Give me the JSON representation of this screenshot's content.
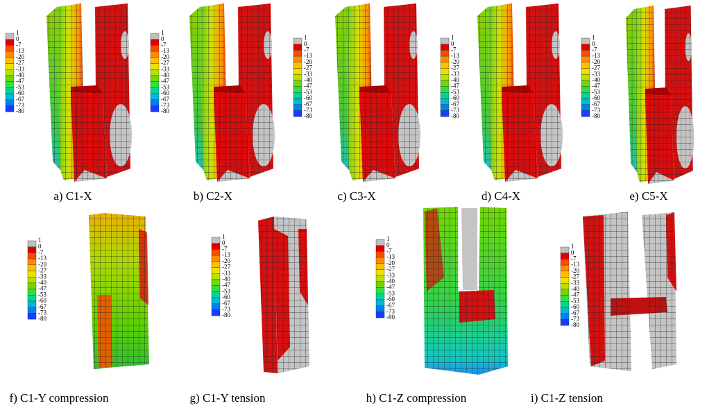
{
  "legend": {
    "labels": [
      "1",
      "0",
      "-7",
      "-13",
      "-20",
      "-27",
      "-33",
      "-40",
      "-47",
      "-53",
      "-60",
      "-67",
      "-73",
      "-80"
    ],
    "colors": [
      "#c0c0c0",
      "#e00000",
      "#ff4a00",
      "#ff8c00",
      "#ffbf00",
      "#f0e000",
      "#b8e000",
      "#70d800",
      "#30e040",
      "#00d890",
      "#00b8d8",
      "#0080f0",
      "#1a3cff"
    ]
  },
  "panels": [
    {
      "caption": "a) C1-X"
    },
    {
      "caption": "b) C2-X"
    },
    {
      "caption": "c) C3-X"
    },
    {
      "caption": "d) C4-X"
    },
    {
      "caption": "e) C5-X"
    },
    {
      "caption": "f) C1-Y compression"
    },
    {
      "caption": "g) C1-Y tension"
    },
    {
      "caption": "h) C1-Z compression"
    },
    {
      "caption": "i) C1-Z tension"
    }
  ]
}
